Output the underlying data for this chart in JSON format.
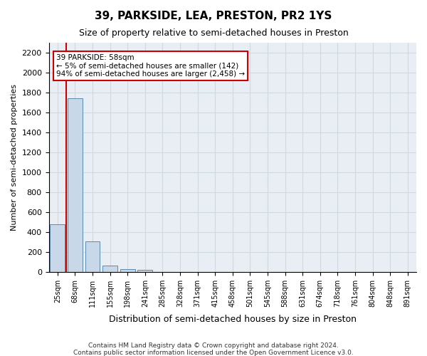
{
  "title": "39, PARKSIDE, LEA, PRESTON, PR2 1YS",
  "subtitle": "Size of property relative to semi-detached houses in Preston",
  "xlabel": "Distribution of semi-detached houses by size in Preston",
  "ylabel": "Number of semi-detached properties",
  "footer1": "Contains HM Land Registry data © Crown copyright and database right 2024.",
  "footer2": "Contains public sector information licensed under the Open Government Licence v3.0.",
  "annotation_title": "39 PARKSIDE: 58sqm",
  "annotation_line1": "← 5% of semi-detached houses are smaller (142)",
  "annotation_line2": "94% of semi-detached houses are larger (2,458) →",
  "property_sqm": 58,
  "bar_color": "#c8d8e8",
  "bar_edge_color": "#5a8ab0",
  "red_line_color": "#cc0000",
  "annotation_box_color": "#cc0000",
  "categories": [
    "25sqm",
    "68sqm",
    "111sqm",
    "155sqm",
    "198sqm",
    "241sqm",
    "285sqm",
    "328sqm",
    "371sqm",
    "415sqm",
    "458sqm",
    "501sqm",
    "545sqm",
    "588sqm",
    "631sqm",
    "674sqm",
    "718sqm",
    "761sqm",
    "804sqm",
    "848sqm",
    "891sqm"
  ],
  "values": [
    480,
    1740,
    305,
    60,
    28,
    18,
    0,
    0,
    0,
    0,
    0,
    0,
    0,
    0,
    0,
    0,
    0,
    0,
    0,
    0,
    0
  ],
  "ylim": [
    0,
    2300
  ],
  "yticks": [
    0,
    200,
    400,
    600,
    800,
    1000,
    1200,
    1400,
    1600,
    1800,
    2000,
    2200
  ],
  "grid_color": "#d0d8e0",
  "bg_color": "#e8eef4"
}
